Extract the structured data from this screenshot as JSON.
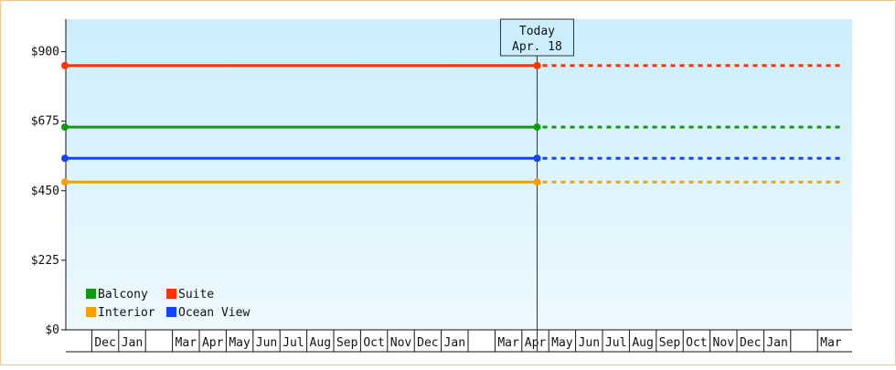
{
  "chart_data": {
    "type": "line",
    "title": "",
    "xlabel": "",
    "ylabel": "",
    "ylim": [
      0,
      1005
    ],
    "yticks": [
      0,
      225,
      450,
      675,
      900
    ],
    "ytick_labels": [
      "$0",
      "$225",
      "$450",
      "$675",
      "$900"
    ],
    "x_range": [
      "2016-11",
      "2019-04"
    ],
    "x_months": [
      {
        "month": "2016-11",
        "label": ""
      },
      {
        "month": "2016-12",
        "label": "Dec"
      },
      {
        "month": "2017-01",
        "label": "Jan"
      },
      {
        "month": "2017-02",
        "label": ""
      },
      {
        "month": "2017-03",
        "label": "Mar"
      },
      {
        "month": "2017-04",
        "label": "Apr"
      },
      {
        "month": "2017-05",
        "label": "May"
      },
      {
        "month": "2017-06",
        "label": "Jun"
      },
      {
        "month": "2017-07",
        "label": "Jul"
      },
      {
        "month": "2017-08",
        "label": "Aug"
      },
      {
        "month": "2017-09",
        "label": "Sep"
      },
      {
        "month": "2017-10",
        "label": "Oct"
      },
      {
        "month": "2017-11",
        "label": "Nov"
      },
      {
        "month": "2017-12",
        "label": "Dec"
      },
      {
        "month": "2018-01",
        "label": "Jan"
      },
      {
        "month": "2018-02",
        "label": ""
      },
      {
        "month": "2018-03",
        "label": "Mar"
      },
      {
        "month": "2018-04",
        "label": "Apr"
      },
      {
        "month": "2018-05",
        "label": "May"
      },
      {
        "month": "2018-06",
        "label": "Jun"
      },
      {
        "month": "2018-07",
        "label": "Jul"
      },
      {
        "month": "2018-08",
        "label": "Aug"
      },
      {
        "month": "2018-09",
        "label": "Sep"
      },
      {
        "month": "2018-10",
        "label": "Oct"
      },
      {
        "month": "2018-11",
        "label": "Nov"
      },
      {
        "month": "2018-12",
        "label": "Dec"
      },
      {
        "month": "2019-01",
        "label": "Jan"
      },
      {
        "month": "2019-02",
        "label": ""
      },
      {
        "month": "2019-03",
        "label": "Mar"
      }
    ],
    "today": {
      "date": "2018-04-18",
      "label_line1": "Today",
      "label_line2": "Apr. 18"
    },
    "series": [
      {
        "name": "Suite",
        "color": "#ff3300",
        "start": "2016-11",
        "today_value": 855,
        "projection_end": "2019-04",
        "projected_value": 855
      },
      {
        "name": "Balcony",
        "color": "#119911",
        "start": "2016-11",
        "today_value": 656,
        "projection_end": "2019-04",
        "projected_value": 656
      },
      {
        "name": "Ocean View",
        "color": "#1144ff",
        "start": "2016-11",
        "today_value": 555,
        "projection_end": "2019-04",
        "projected_value": 555
      },
      {
        "name": "Interior",
        "color": "#f5a000",
        "start": "2016-11",
        "today_value": 478,
        "projection_end": "2019-04",
        "projected_value": 478
      }
    ],
    "legend": {
      "placement": "bottom-left",
      "order": [
        "Balcony",
        "Suite",
        "Interior",
        "Ocean View"
      ]
    },
    "background": {
      "top": "#cceefc",
      "bottom": "#eef9ff"
    },
    "grid": false
  }
}
